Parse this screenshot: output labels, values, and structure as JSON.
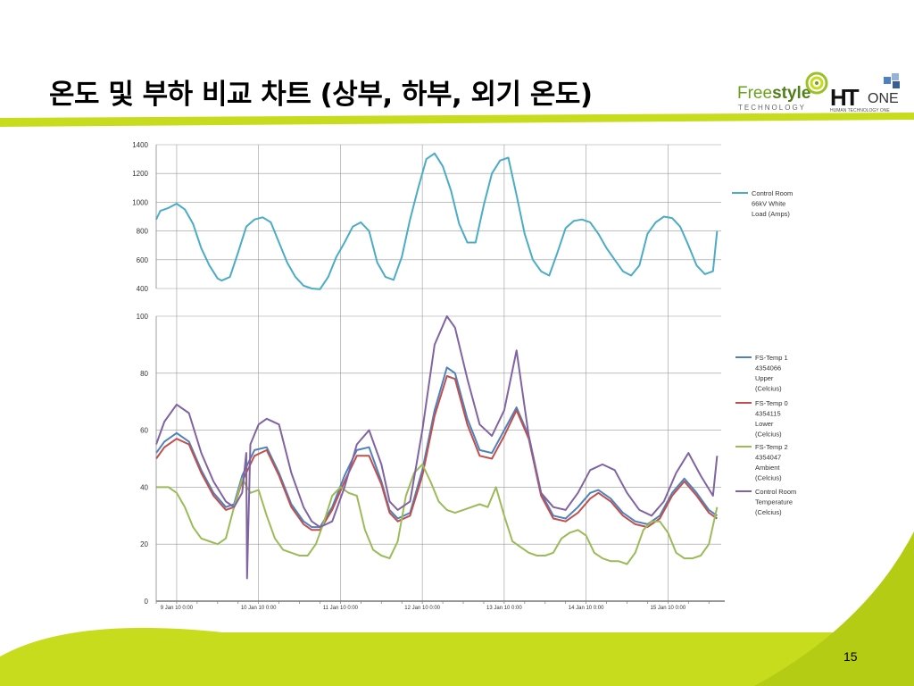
{
  "slide": {
    "title": "온도 및 부하 비교 차트 (상부, 하부, 외기 온도)",
    "page_number": "15"
  },
  "logos": {
    "freestyle": {
      "free": "Free",
      "style": "style",
      "technology": "TECHNOLOGY"
    },
    "htone": {
      "ht": "HT",
      "one": "ONE",
      "subtitle": "HUMAN TECHNOLOGY ONE"
    }
  },
  "colors": {
    "accent_green": "#c8dc1e",
    "control_room_load": "#4bacc6",
    "fs_temp_upper": "#4f81bd",
    "fs_temp_lower": "#c0504d",
    "fs_temp_ambient": "#9bbb59",
    "control_room_temp": "#8064a2",
    "grid": "#999999"
  },
  "chart_data": [
    {
      "type": "line",
      "title": "",
      "xlabel": "",
      "ylabel": "",
      "ylim": [
        400,
        1400
      ],
      "yticks": [
        400,
        600,
        800,
        1000,
        1200,
        1400
      ],
      "xlim": [
        8.75,
        15.65
      ],
      "grid": true,
      "legend": "right",
      "series": [
        {
          "name": "Control Room 66kV White Load (Amps)",
          "color": "#4bacc6",
          "x": [
            8.75,
            8.8,
            8.9,
            9.0,
            9.1,
            9.2,
            9.3,
            9.4,
            9.5,
            9.55,
            9.65,
            9.75,
            9.85,
            9.95,
            10.05,
            10.15,
            10.25,
            10.35,
            10.45,
            10.55,
            10.65,
            10.75,
            10.85,
            10.95,
            11.05,
            11.15,
            11.25,
            11.35,
            11.45,
            11.55,
            11.65,
            11.75,
            11.85,
            11.95,
            12.05,
            12.15,
            12.25,
            12.35,
            12.45,
            12.55,
            12.65,
            12.75,
            12.85,
            12.95,
            13.05,
            13.15,
            13.25,
            13.35,
            13.45,
            13.55,
            13.65,
            13.75,
            13.85,
            13.95,
            14.05,
            14.15,
            14.25,
            14.35,
            14.45,
            14.55,
            14.65,
            14.75,
            14.85,
            14.95,
            15.05,
            15.15,
            15.25,
            15.35,
            15.45,
            15.55,
            15.6
          ],
          "y": [
            880,
            940,
            960,
            990,
            950,
            850,
            680,
            560,
            470,
            455,
            480,
            650,
            830,
            880,
            895,
            860,
            720,
            580,
            480,
            420,
            400,
            395,
            480,
            620,
            720,
            830,
            860,
            800,
            580,
            480,
            460,
            620,
            880,
            1100,
            1300,
            1340,
            1250,
            1080,
            850,
            720,
            720,
            980,
            1200,
            1290,
            1310,
            1050,
            780,
            600,
            520,
            490,
            650,
            820,
            870,
            880,
            860,
            780,
            680,
            600,
            520,
            490,
            560,
            780,
            860,
            900,
            890,
            830,
            700,
            560,
            500,
            520,
            800
          ]
        }
      ]
    },
    {
      "type": "line",
      "title": "",
      "xlabel": "",
      "ylabel": "",
      "ylim": [
        0,
        100
      ],
      "yticks": [
        0,
        20,
        40,
        60,
        80,
        100
      ],
      "xlim": [
        8.75,
        15.65
      ],
      "x_tick_values": [
        9,
        10,
        11,
        12,
        13,
        14,
        15
      ],
      "x_tick_labels": [
        "9 Jan 10 0:00",
        "10 Jan 10 0:00",
        "11 Jan 10 0:00",
        "12 Jan 10 0:00",
        "13 Jan 10 0:00",
        "14 Jan 10 0:00",
        "15 Jan 10 0:00"
      ],
      "grid": true,
      "legend": "right",
      "series": [
        {
          "name": "FS-Temp 1 4354066 Upper (Celcius)",
          "color": "#4f81bd",
          "x": [
            8.75,
            8.85,
            9.0,
            9.15,
            9.3,
            9.45,
            9.6,
            9.7,
            9.8,
            9.95,
            10.1,
            10.25,
            10.4,
            10.55,
            10.65,
            10.75,
            10.9,
            11.05,
            11.2,
            11.35,
            11.5,
            11.6,
            11.7,
            11.85,
            12.0,
            12.15,
            12.3,
            12.4,
            12.55,
            12.7,
            12.85,
            13.0,
            13.15,
            13.3,
            13.45,
            13.6,
            13.75,
            13.9,
            14.05,
            14.15,
            14.3,
            14.45,
            14.6,
            14.75,
            14.9,
            15.05,
            15.2,
            15.35,
            15.5,
            15.6
          ],
          "y": [
            52,
            56,
            59,
            56,
            46,
            38,
            33,
            34,
            44,
            53,
            54,
            45,
            34,
            28,
            26,
            26,
            33,
            44,
            53,
            54,
            42,
            32,
            29,
            31,
            46,
            67,
            82,
            80,
            64,
            53,
            52,
            60,
            68,
            58,
            38,
            30,
            29,
            33,
            38,
            39,
            36,
            31,
            28,
            27,
            30,
            38,
            43,
            38,
            32,
            30
          ]
        },
        {
          "name": "FS-Temp 0 4354115 Lower (Celcius)",
          "color": "#c0504d",
          "x": [
            8.75,
            8.85,
            9.0,
            9.15,
            9.3,
            9.45,
            9.6,
            9.7,
            9.8,
            9.95,
            10.1,
            10.25,
            10.4,
            10.55,
            10.65,
            10.75,
            10.9,
            11.05,
            11.2,
            11.35,
            11.5,
            11.6,
            11.7,
            11.85,
            12.0,
            12.15,
            12.3,
            12.4,
            12.55,
            12.7,
            12.85,
            13.0,
            13.15,
            13.3,
            13.45,
            13.6,
            13.75,
            13.9,
            14.05,
            14.15,
            14.3,
            14.45,
            14.6,
            14.75,
            14.9,
            15.05,
            15.2,
            15.35,
            15.5,
            15.6
          ],
          "y": [
            50,
            54,
            57,
            55,
            45,
            37,
            32,
            33,
            42,
            51,
            53,
            44,
            33,
            27,
            25,
            25,
            32,
            42,
            51,
            51,
            41,
            31,
            28,
            30,
            44,
            65,
            79,
            78,
            62,
            51,
            50,
            58,
            67,
            57,
            37,
            29,
            28,
            31,
            36,
            38,
            35,
            30,
            27,
            26,
            29,
            37,
            42,
            37,
            31,
            29
          ]
        },
        {
          "name": "FS-Temp 2 4354047 Ambient (Celcius)",
          "color": "#9bbb59",
          "x": [
            8.75,
            8.9,
            9.0,
            9.1,
            9.2,
            9.3,
            9.4,
            9.5,
            9.6,
            9.7,
            9.8,
            9.9,
            10.0,
            10.1,
            10.2,
            10.3,
            10.4,
            10.5,
            10.6,
            10.7,
            10.8,
            10.9,
            11.0,
            11.1,
            11.2,
            11.3,
            11.4,
            11.5,
            11.6,
            11.7,
            11.8,
            11.9,
            12.0,
            12.1,
            12.2,
            12.3,
            12.4,
            12.5,
            12.6,
            12.7,
            12.8,
            12.9,
            13.0,
            13.1,
            13.2,
            13.3,
            13.4,
            13.5,
            13.6,
            13.7,
            13.8,
            13.9,
            14.0,
            14.1,
            14.2,
            14.3,
            14.4,
            14.5,
            14.6,
            14.7,
            14.8,
            14.9,
            15.0,
            15.1,
            15.2,
            15.3,
            15.4,
            15.5,
            15.6
          ],
          "y": [
            40,
            40,
            38,
            33,
            26,
            22,
            21,
            20,
            22,
            33,
            43,
            38,
            39,
            30,
            22,
            18,
            17,
            16,
            16,
            20,
            28,
            37,
            40,
            38,
            37,
            25,
            18,
            16,
            15,
            21,
            37,
            45,
            48,
            42,
            35,
            32,
            31,
            32,
            33,
            34,
            33,
            40,
            30,
            21,
            19,
            17,
            16,
            16,
            17,
            22,
            24,
            25,
            23,
            17,
            15,
            14,
            14,
            13,
            17,
            25,
            28,
            28,
            24,
            17,
            15,
            15,
            16,
            20,
            33
          ]
        },
        {
          "name": "Control Room Temperature (Celcius)",
          "color": "#8064a2",
          "x": [
            8.75,
            8.85,
            9.0,
            9.15,
            9.3,
            9.45,
            9.6,
            9.7,
            9.8,
            9.85,
            9.86,
            9.9,
            10.0,
            10.1,
            10.25,
            10.4,
            10.55,
            10.65,
            10.75,
            10.9,
            11.05,
            11.2,
            11.35,
            11.5,
            11.6,
            11.7,
            11.85,
            12.0,
            12.15,
            12.3,
            12.4,
            12.55,
            12.7,
            12.85,
            13.0,
            13.15,
            13.3,
            13.45,
            13.6,
            13.75,
            13.9,
            14.05,
            14.2,
            14.35,
            14.5,
            14.65,
            14.8,
            14.95,
            15.1,
            15.25,
            15.4,
            15.55,
            15.6
          ],
          "y": [
            55,
            63,
            69,
            66,
            52,
            42,
            35,
            33,
            38,
            52,
            8,
            55,
            62,
            64,
            62,
            45,
            33,
            28,
            26,
            28,
            40,
            55,
            60,
            48,
            35,
            32,
            35,
            60,
            90,
            100,
            96,
            78,
            62,
            58,
            67,
            88,
            58,
            38,
            33,
            32,
            38,
            46,
            48,
            46,
            38,
            32,
            30,
            35,
            45,
            52,
            44,
            37,
            51
          ]
        }
      ]
    }
  ]
}
